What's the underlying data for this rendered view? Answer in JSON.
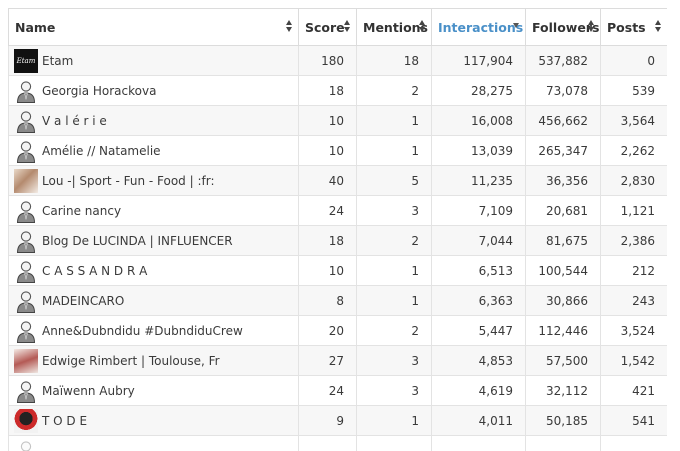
{
  "table": {
    "headers": [
      "Name",
      "Score",
      "Mentions",
      "Interactions",
      "Followers",
      "Posts"
    ],
    "sorted_column": "Interactions",
    "rows": [
      {
        "name": "Etam",
        "avatar": "etam-logo",
        "score": "180",
        "mentions": "18",
        "interactions": "117,904",
        "followers": "537,882",
        "posts": "0"
      },
      {
        "name": "Georgia Horackova",
        "avatar": "default-user",
        "score": "18",
        "mentions": "2",
        "interactions": "28,275",
        "followers": "73,078",
        "posts": "539"
      },
      {
        "name": "V a l é r i e",
        "avatar": "default-user",
        "score": "10",
        "mentions": "1",
        "interactions": "16,008",
        "followers": "456,662",
        "posts": "3,564"
      },
      {
        "name": "Amélie // Natamelie",
        "avatar": "default-user",
        "score": "10",
        "mentions": "1",
        "interactions": "13,039",
        "followers": "265,347",
        "posts": "2,262"
      },
      {
        "name": "Lou -| Sport - Fun - Food | :fr:",
        "avatar": "photo-1",
        "score": "40",
        "mentions": "5",
        "interactions": "11,235",
        "followers": "36,356",
        "posts": "2,830"
      },
      {
        "name": "Carine nancy",
        "avatar": "default-user",
        "score": "24",
        "mentions": "3",
        "interactions": "7,109",
        "followers": "20,681",
        "posts": "1,121"
      },
      {
        "name": "Blog De LUCINDA | INFLUENCER",
        "avatar": "default-user",
        "score": "18",
        "mentions": "2",
        "interactions": "7,044",
        "followers": "81,675",
        "posts": "2,386"
      },
      {
        "name": "C A S S A N D R A",
        "avatar": "default-user",
        "score": "10",
        "mentions": "1",
        "interactions": "6,513",
        "followers": "100,544",
        "posts": "212"
      },
      {
        "name": "MADEINCARO",
        "avatar": "default-user",
        "score": "8",
        "mentions": "1",
        "interactions": "6,363",
        "followers": "30,866",
        "posts": "243"
      },
      {
        "name": "Anne&Dubndidu #DubndiduCrew",
        "avatar": "default-user",
        "score": "20",
        "mentions": "2",
        "interactions": "5,447",
        "followers": "112,446",
        "posts": "3,524"
      },
      {
        "name": "Edwige Rimbert | Toulouse, Fr",
        "avatar": "photo-2",
        "score": "27",
        "mentions": "3",
        "interactions": "4,853",
        "followers": "57,500",
        "posts": "1,542"
      },
      {
        "name": "Maïwenn Aubry",
        "avatar": "default-user",
        "score": "24",
        "mentions": "3",
        "interactions": "4,619",
        "followers": "32,112",
        "posts": "421"
      },
      {
        "name": "T O D E",
        "avatar": "photo-3",
        "score": "9",
        "mentions": "1",
        "interactions": "4,011",
        "followers": "50,185",
        "posts": "541"
      }
    ]
  },
  "colors": {
    "sorted_header": "#4a90c8",
    "row_stripe": "#f7f7f7",
    "border": "#e3e3e3"
  }
}
